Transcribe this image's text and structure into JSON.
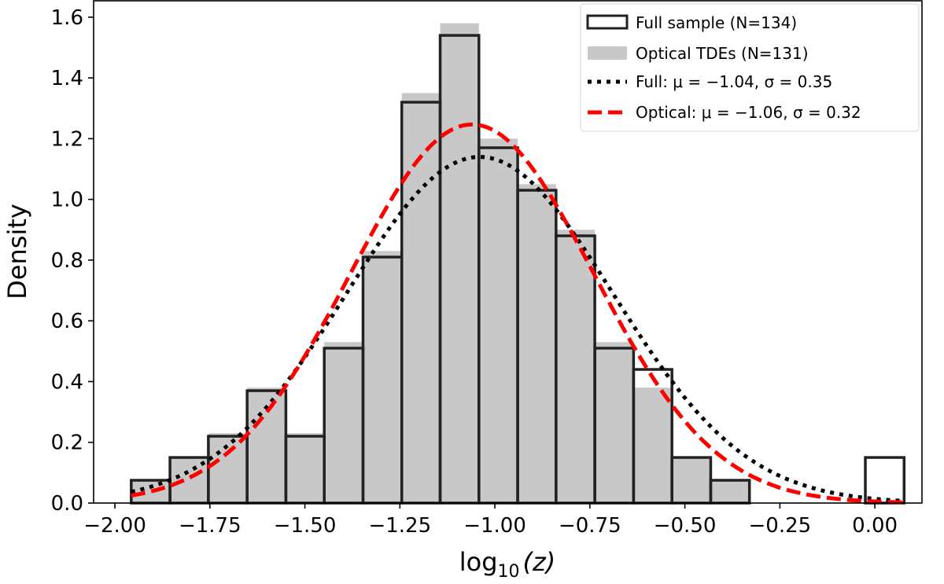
{
  "chart_data": {
    "type": "bar",
    "subtype": "histogram-with-gaussian-fits",
    "xlabel_main": "log",
    "xlabel_sub": "10",
    "xlabel_arg": "(z)",
    "ylabel": "Density",
    "xlim": [
      -2.056,
      0.124
    ],
    "ylim": [
      0,
      1.654
    ],
    "xticks": [
      -2.0,
      -1.75,
      -1.5,
      -1.25,
      -1.0,
      -0.75,
      -0.5,
      -0.25,
      0.0
    ],
    "xtick_labels": [
      "−2.00",
      "−1.75",
      "−1.50",
      "−1.25",
      "−1.00",
      "−0.75",
      "−0.50",
      "−0.25",
      "0.00"
    ],
    "yticks": [
      0,
      0.2,
      0.4,
      0.6,
      0.8,
      1.0,
      1.2,
      1.4,
      1.6
    ],
    "ytick_labels": [
      "0.0",
      "0.2",
      "0.4",
      "0.6",
      "0.8",
      "1.0",
      "1.2",
      "1.4",
      "1.6"
    ],
    "bin_edges": [
      -1.957,
      -1.855,
      -1.754,
      -1.652,
      -1.55,
      -1.449,
      -1.347,
      -1.245,
      -1.144,
      -1.042,
      -0.94,
      -0.839,
      -0.737,
      -0.635,
      -0.534,
      -0.432,
      -0.33,
      -0.229,
      -0.127,
      -0.025,
      0.077
    ],
    "grid": false,
    "legend_position": "top-right",
    "series": [
      {
        "name": "Full sample (N=134)",
        "kind": "step-histogram",
        "color": "#222222",
        "values": [
          0.075,
          0.15,
          0.22,
          0.37,
          0.22,
          0.51,
          0.81,
          1.32,
          1.54,
          1.17,
          1.03,
          0.88,
          0.51,
          0.44,
          0.15,
          0.075,
          0,
          0,
          0,
          0.15
        ]
      },
      {
        "name": "Optical TDEs (N=131)",
        "kind": "filled-histogram",
        "color": "#c8c8c8",
        "values": [
          0.076,
          0.153,
          0.23,
          0.38,
          0.23,
          0.53,
          0.83,
          1.35,
          1.58,
          1.2,
          1.05,
          0.9,
          0.53,
          0.38,
          0.153,
          0.076,
          0,
          0,
          0,
          0
        ]
      },
      {
        "name": "Full: μ = −1.04, σ = 0.35",
        "kind": "gaussian",
        "mu": -1.04,
        "sigma": 0.35,
        "color": "#000000",
        "linestyle": "dotted"
      },
      {
        "name": "Optical:  μ = −1.06,  σ = 0.32",
        "kind": "gaussian",
        "mu": -1.06,
        "sigma": 0.32,
        "color": "#ff0000",
        "linestyle": "dashed"
      }
    ]
  }
}
